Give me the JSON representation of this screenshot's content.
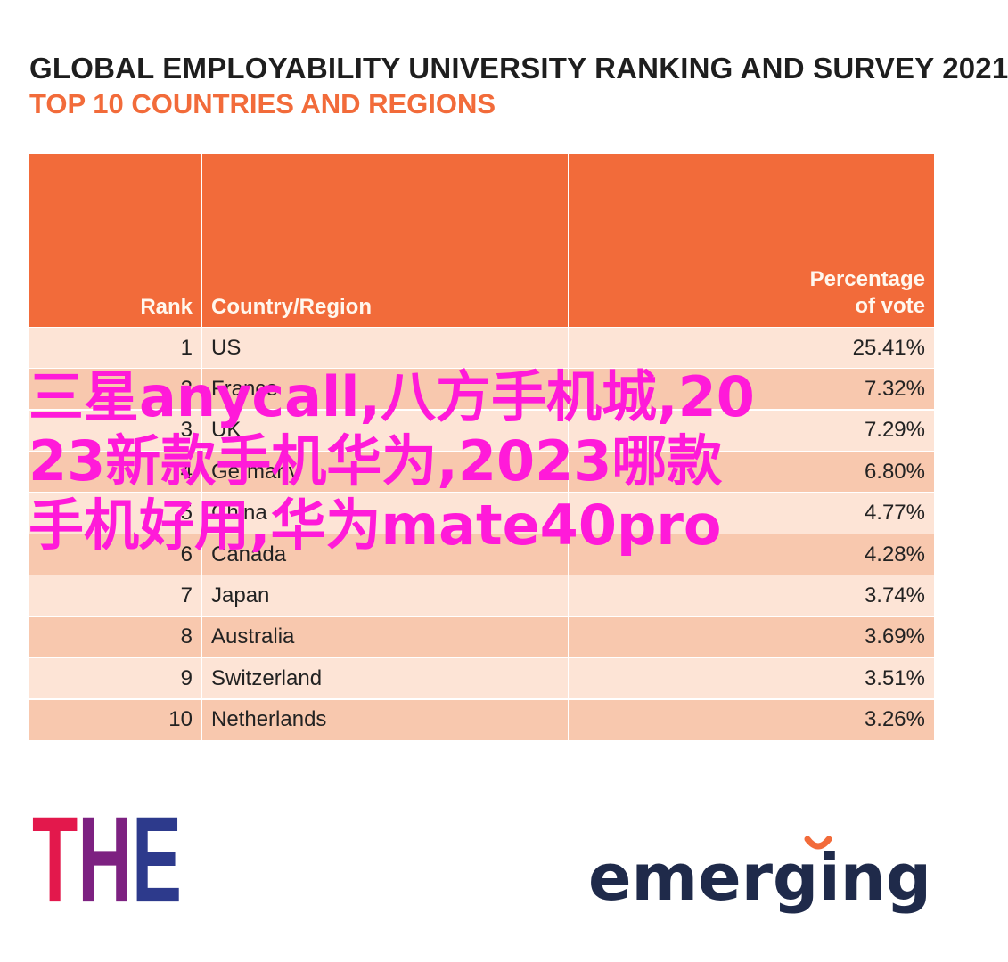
{
  "header": {
    "title": "GLOBAL EMPLOYABILITY UNIVERSITY RANKING AND SURVEY 2021",
    "subtitle": "TOP 10 COUNTRIES AND REGIONS"
  },
  "chart_data": {
    "type": "table",
    "columns": [
      "Rank",
      "Country/Region",
      "Percentage of vote"
    ],
    "column_labels": {
      "rank": "Rank",
      "country": "Country/Region",
      "pct_line1": "Percentage",
      "pct_line2": "of vote"
    },
    "rows": [
      {
        "rank": "1",
        "country": "US",
        "pct": "25.41%"
      },
      {
        "rank": "2",
        "country": "France",
        "pct": "7.32%"
      },
      {
        "rank": "3",
        "country": "UK",
        "pct": "7.29%"
      },
      {
        "rank": "4",
        "country": "Germany",
        "pct": "6.80%"
      },
      {
        "rank": "5",
        "country": "China",
        "pct": "4.77%"
      },
      {
        "rank": "6",
        "country": "Canada",
        "pct": "4.28%"
      },
      {
        "rank": "7",
        "country": "Japan",
        "pct": "3.74%"
      },
      {
        "rank": "8",
        "country": "Australia",
        "pct": "3.69%"
      },
      {
        "rank": "9",
        "country": "Switzerland",
        "pct": "3.51%"
      },
      {
        "rank": "10",
        "country": "Netherlands",
        "pct": "3.26%"
      }
    ]
  },
  "logos": {
    "the": "THE",
    "emerging": "emerging"
  },
  "overlay_text": "三星anycall,八方手机城,2023新款手机华为,2023哪款手机好用,华为mate40pro",
  "colors": {
    "accent": "#f26b3a",
    "row_light": "#fde4d6",
    "row_dark": "#f8c8ae",
    "overlay": "#ff1ad9"
  }
}
